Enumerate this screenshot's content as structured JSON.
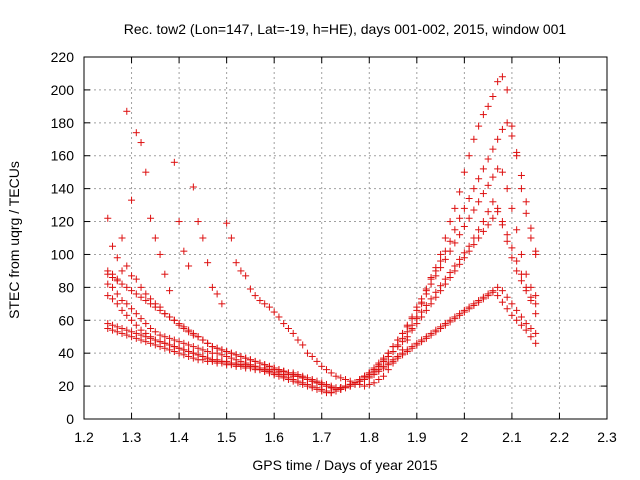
{
  "chart_data": {
    "type": "scatter",
    "title": "Rec. tow2 (Lon=147, Lat=-19, h=HE), days 001-002, 2015, window 001",
    "xlabel": "GPS time / Days of year 2015",
    "ylabel": "STEC from uqrg / TECUs",
    "xlim": [
      1.2,
      2.3
    ],
    "ylim": [
      0,
      220
    ],
    "x_ticks": [
      "1.2",
      "1.3",
      "1.4",
      "1.5",
      "1.6",
      "1.7",
      "1.8",
      "1.9",
      "2",
      "2.1",
      "2.2",
      "2.3"
    ],
    "y_ticks": [
      "0",
      "20",
      "40",
      "60",
      "80",
      "100",
      "120",
      "140",
      "160",
      "180",
      "200",
      "220"
    ],
    "grid": true,
    "marker": "plus",
    "color": "#dd1010",
    "x_step": 0.01,
    "series": [
      {
        "x0": 1.25,
        "values": [
          122,
          105,
          98,
          110,
          187,
          133,
          174,
          168,
          150,
          122,
          110,
          100,
          88,
          78,
          156,
          120,
          102,
          93,
          141,
          120,
          110,
          95,
          80,
          76,
          70,
          119,
          110,
          95,
          90,
          87,
          79,
          75,
          72,
          70,
          68,
          65,
          62,
          58,
          55,
          52,
          48,
          45,
          40,
          38,
          35,
          32,
          30,
          28,
          26,
          25,
          24,
          23,
          22,
          21,
          20,
          21,
          22,
          24,
          26,
          30,
          34,
          38,
          42,
          48,
          55,
          62,
          70,
          78,
          86,
          92,
          100,
          110,
          120,
          128,
          138,
          150,
          160,
          170,
          178,
          185,
          190,
          196,
          205,
          208,
          200,
          178,
          162,
          140,
          125,
          110,
          102
        ]
      },
      {
        "x0": 1.25,
        "values": [
          90,
          88,
          85,
          90,
          93,
          87,
          85,
          80,
          76,
          73,
          70,
          68,
          64,
          62,
          60,
          57,
          55,
          53,
          51,
          50,
          48,
          46,
          44,
          43,
          42,
          41,
          40,
          39,
          38,
          37,
          36,
          35,
          34,
          33,
          32,
          31,
          30,
          29,
          28,
          27,
          26,
          25,
          24,
          23,
          22,
          21,
          20,
          19,
          18,
          19,
          20,
          21,
          22,
          24,
          26,
          28,
          30,
          33,
          36,
          40,
          44,
          48,
          52,
          57,
          62,
          68,
          73,
          79,
          85,
          90,
          96,
          102,
          108,
          115,
          122,
          128,
          134,
          140,
          146,
          152,
          158,
          164,
          170,
          176,
          180,
          172,
          160,
          148,
          132,
          116,
          100
        ]
      },
      {
        "x0": 1.25,
        "values": [
          82,
          80,
          76,
          72,
          70,
          67,
          64,
          61,
          58,
          55,
          53,
          51,
          50,
          49,
          48,
          47,
          46,
          45,
          44,
          43,
          42,
          41,
          40,
          40,
          39,
          38,
          37,
          36,
          35,
          34,
          33,
          32,
          31,
          30,
          29,
          28,
          27,
          26,
          25,
          24,
          23,
          22,
          21,
          20,
          19,
          18,
          17,
          16,
          17,
          18,
          19,
          20,
          22,
          24,
          26,
          28,
          31,
          34,
          37,
          40,
          44,
          48,
          52,
          56,
          61,
          66,
          71,
          76,
          82,
          87,
          92,
          97,
          102,
          107,
          112,
          117,
          122,
          127,
          132,
          137,
          142,
          147,
          152,
          150,
          140,
          128,
          115,
          100,
          88,
          80,
          75
        ]
      },
      {
        "x0": 1.25,
        "values": [
          75,
          73,
          70,
          66,
          63,
          60,
          57,
          54,
          52,
          50,
          48,
          47,
          46,
          45,
          44,
          43,
          42,
          41,
          40,
          39,
          38,
          37,
          36,
          35,
          35,
          34,
          34,
          33,
          33,
          32,
          32,
          31,
          30,
          29,
          28,
          27,
          26,
          25,
          24,
          23,
          22,
          21,
          20,
          19,
          18,
          17,
          16,
          16,
          17,
          18,
          19,
          20,
          21,
          23,
          25,
          27,
          29,
          32,
          35,
          38,
          41,
          45,
          49,
          53,
          57,
          61,
          65,
          69,
          73,
          77,
          81,
          85,
          89,
          93,
          97,
          101,
          105,
          110,
          115,
          120,
          126,
          132,
          128,
          118,
          108,
          98,
          90,
          84,
          78,
          74,
          70
        ]
      },
      {
        "x0": 1.25,
        "values": [
          58,
          57,
          56,
          55,
          54,
          53,
          52,
          51,
          50,
          49,
          48,
          47,
          46,
          45,
          44,
          43,
          42,
          41,
          40,
          39,
          38,
          37,
          36,
          36,
          35,
          35,
          34,
          34,
          33,
          33,
          32,
          32,
          31,
          31,
          30,
          30,
          29,
          29,
          28,
          28,
          27,
          26,
          25,
          24,
          23,
          22,
          21,
          20,
          19,
          19,
          20,
          21,
          22,
          23,
          24,
          26,
          28,
          30,
          32,
          34,
          36,
          38,
          40,
          42,
          44,
          46,
          48,
          50,
          52,
          54,
          56,
          58,
          60,
          62,
          64,
          66,
          68,
          70,
          72,
          74,
          76,
          78,
          80,
          78,
          74,
          70,
          66,
          62,
          58,
          55,
          52
        ]
      },
      {
        "x0": 1.25,
        "values": [
          55,
          54,
          53,
          52,
          51,
          50,
          49,
          48,
          47,
          46,
          45,
          44,
          43,
          42,
          41,
          40,
          39,
          38,
          37,
          36,
          36,
          35,
          35,
          34,
          34,
          33,
          33,
          32,
          32,
          31,
          31,
          30,
          30,
          29,
          29,
          28,
          28,
          27,
          27,
          26,
          26,
          25,
          24,
          23,
          22,
          21,
          20,
          19,
          18,
          19,
          20,
          21,
          22,
          23,
          24,
          25,
          27,
          29,
          31,
          33,
          35,
          37,
          39,
          41,
          43,
          45,
          47,
          49,
          51,
          53,
          55,
          57,
          59,
          61,
          63,
          65,
          67,
          69,
          71,
          73,
          75,
          77,
          75,
          71,
          67,
          63,
          60,
          57,
          54,
          50,
          46
        ]
      },
      {
        "x0": 1.25,
        "values": [
          88,
          86,
          84,
          82,
          80,
          78,
          76,
          74,
          72,
          70,
          68,
          66,
          64,
          62,
          60,
          58,
          56,
          54,
          52,
          50,
          48,
          46,
          44,
          43,
          42,
          41,
          40,
          39,
          38,
          37,
          36,
          35,
          34,
          33,
          32,
          31,
          30,
          29,
          28,
          27,
          26,
          25,
          24,
          23,
          22,
          21,
          20,
          19,
          18,
          19,
          20,
          21,
          22,
          24,
          26,
          28,
          30,
          32,
          35,
          38,
          41,
          44,
          47,
          50,
          54,
          58,
          62,
          66,
          70,
          74,
          78,
          82,
          86,
          90,
          94,
          98,
          102,
          106,
          110,
          114,
          118,
          122,
          126,
          120,
          112,
          104,
          96,
          88,
          80,
          72,
          64
        ]
      }
    ]
  }
}
